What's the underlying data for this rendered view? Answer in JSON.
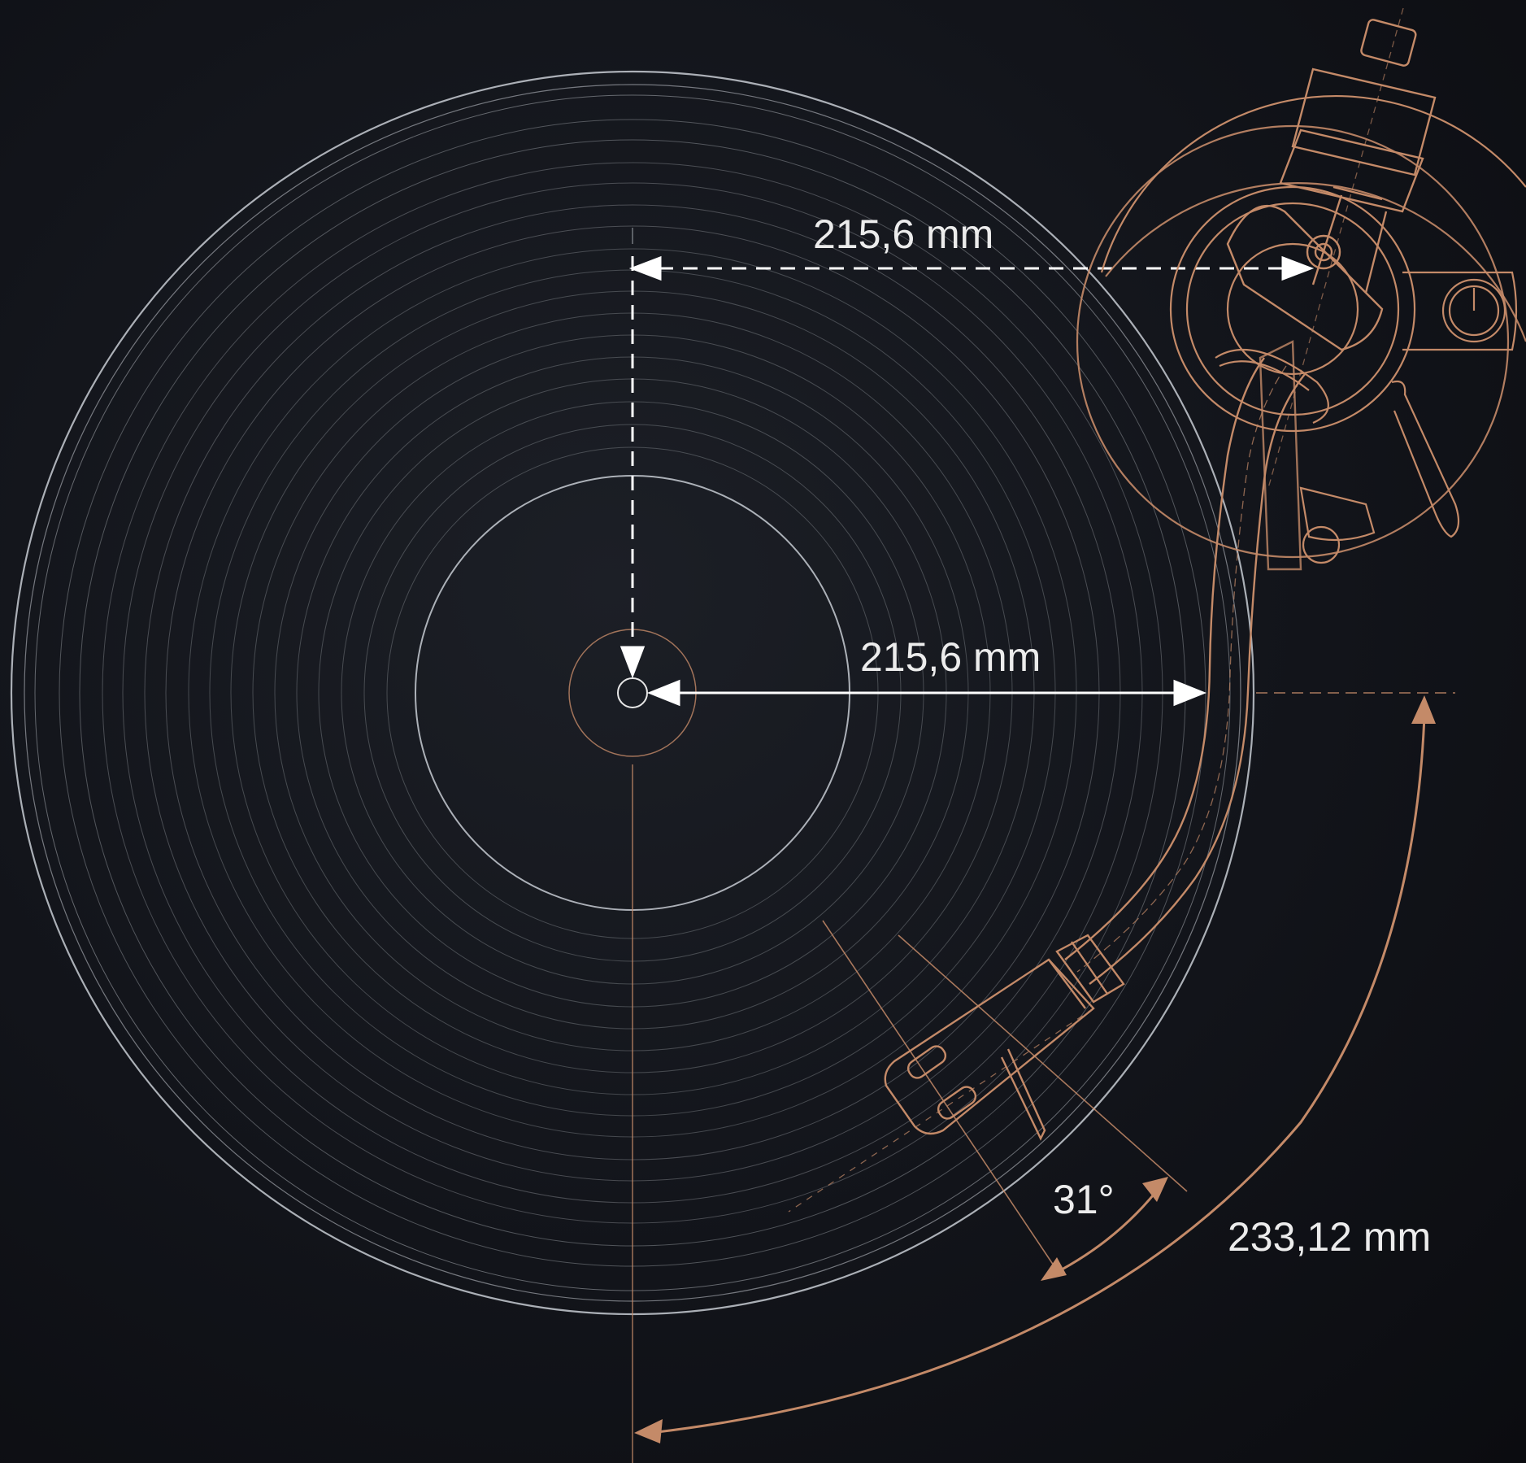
{
  "colors": {
    "background": "#12141a",
    "record_lines": "#bfc3c9",
    "copper": "#c48a68",
    "dimension": "#ffffff"
  },
  "labels": {
    "top_distance": "215,6 mm",
    "center_distance": "215,6 mm",
    "offset_angle": "31°",
    "effective_length": "233,12 mm"
  }
}
